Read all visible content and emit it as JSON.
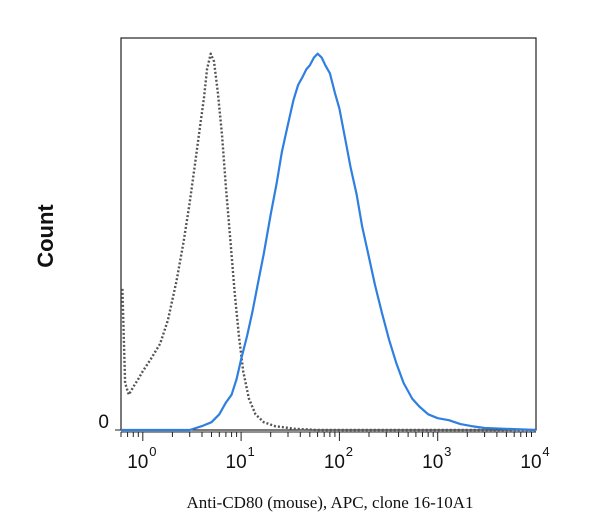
{
  "chart_data": {
    "type": "line",
    "title": "",
    "xlabel": "Anti-CD80 (mouse), APC, clone 16-10A1",
    "ylabel": "Count",
    "xscale": "log",
    "xlim": [
      0.6,
      10000
    ],
    "ylim": [
      0,
      100
    ],
    "grid": false,
    "legend": "none",
    "x_ticks": [
      {
        "base": "10",
        "exp": "0",
        "value": 1
      },
      {
        "base": "10",
        "exp": "1",
        "value": 10
      },
      {
        "base": "10",
        "exp": "2",
        "value": 100
      },
      {
        "base": "10",
        "exp": "3",
        "value": 1000
      },
      {
        "base": "10",
        "exp": "4",
        "value": 10000
      }
    ],
    "y_ticks": [
      {
        "label": "0",
        "value": 0
      }
    ],
    "series": [
      {
        "style": "dotted",
        "color": "#555555",
        "points": [
          [
            0.62,
            36
          ],
          [
            0.66,
            12
          ],
          [
            0.72,
            9
          ],
          [
            0.8,
            11
          ],
          [
            0.9,
            13
          ],
          [
            1.0,
            15
          ],
          [
            1.2,
            18
          ],
          [
            1.5,
            22
          ],
          [
            1.8,
            28
          ],
          [
            2.2,
            38
          ],
          [
            2.6,
            48
          ],
          [
            3.0,
            58
          ],
          [
            3.4,
            68
          ],
          [
            3.8,
            77
          ],
          [
            4.2,
            85
          ],
          [
            4.5,
            92
          ],
          [
            4.9,
            96
          ],
          [
            5.3,
            94
          ],
          [
            5.8,
            86
          ],
          [
            6.4,
            75
          ],
          [
            7.0,
            62
          ],
          [
            7.8,
            48
          ],
          [
            8.6,
            35
          ],
          [
            9.5,
            24
          ],
          [
            10.5,
            15
          ],
          [
            12,
            8
          ],
          [
            14,
            4
          ],
          [
            17,
            2
          ],
          [
            22,
            1
          ],
          [
            35,
            0.3
          ],
          [
            60,
            0
          ],
          [
            10000,
            0
          ]
        ]
      },
      {
        "style": "solid",
        "color": "#2f7fe0",
        "points": [
          [
            0.6,
            0
          ],
          [
            3.0,
            0
          ],
          [
            4.0,
            1
          ],
          [
            5.0,
            2
          ],
          [
            6.0,
            4
          ],
          [
            7.0,
            7
          ],
          [
            8.0,
            9
          ],
          [
            9.0,
            13
          ],
          [
            10.0,
            18
          ],
          [
            11.5,
            24
          ],
          [
            13,
            30
          ],
          [
            15,
            38
          ],
          [
            17,
            45
          ],
          [
            20,
            55
          ],
          [
            23,
            63
          ],
          [
            26,
            71
          ],
          [
            30,
            78
          ],
          [
            34,
            84
          ],
          [
            38,
            88
          ],
          [
            42,
            90
          ],
          [
            46,
            92
          ],
          [
            50,
            93
          ],
          [
            55,
            95
          ],
          [
            60,
            96
          ],
          [
            66,
            95
          ],
          [
            72,
            93
          ],
          [
            80,
            91
          ],
          [
            90,
            86
          ],
          [
            100,
            82
          ],
          [
            115,
            74
          ],
          [
            130,
            67
          ],
          [
            150,
            60
          ],
          [
            170,
            52
          ],
          [
            200,
            44
          ],
          [
            230,
            37
          ],
          [
            270,
            30
          ],
          [
            320,
            23
          ],
          [
            380,
            17
          ],
          [
            450,
            12
          ],
          [
            550,
            8
          ],
          [
            650,
            6
          ],
          [
            800,
            4
          ],
          [
            1000,
            3
          ],
          [
            1300,
            2.5
          ],
          [
            1700,
            1.5
          ],
          [
            2200,
            1
          ],
          [
            3000,
            0.5
          ],
          [
            10000,
            0
          ]
        ]
      }
    ]
  }
}
